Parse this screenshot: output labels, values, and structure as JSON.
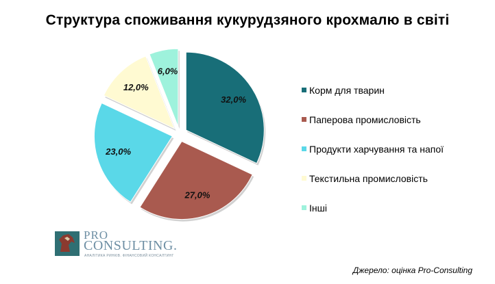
{
  "chart_data": {
    "type": "pie",
    "title": "Структура споживання кукурудзяного крохмалю в світі",
    "slices": [
      {
        "label": "Корм для тварин",
        "value": 32.0,
        "display": "32,0%",
        "color": "#186e78"
      },
      {
        "label": "Паперова промисловість",
        "value": 27.0,
        "display": "27,0%",
        "color": "#a95a4f"
      },
      {
        "label": "Продукти харчування та напої",
        "value": 23.0,
        "display": "23,0%",
        "color": "#5ad8e8"
      },
      {
        "label": "Текстильна промисловість",
        "value": 12.0,
        "display": "12,0%",
        "color": "#fffad2"
      },
      {
        "label": "Інші",
        "value": 6.0,
        "display": "6,0%",
        "color": "#9ef2dc"
      }
    ],
    "legend_position": "right"
  },
  "logo": {
    "pro": "PRO",
    "consulting": "CONSULTING.",
    "tagline": "АНАЛІТИКА РИНКІВ. ФІНАНСОВИЙ КОНСАЛТИНГ"
  },
  "source_note": "Джерело: оцінка Pro-Consulting"
}
